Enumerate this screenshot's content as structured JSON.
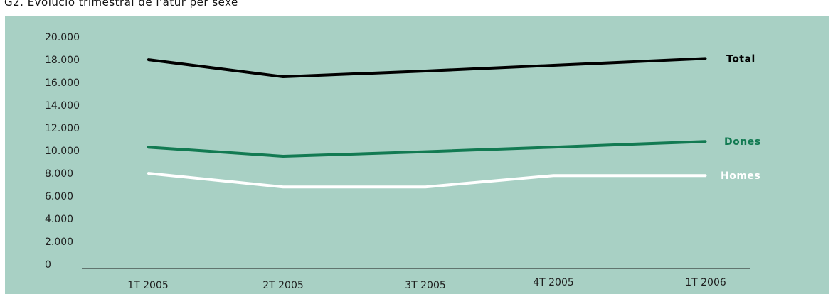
{
  "chart_data": {
    "type": "line",
    "title": "G2. Evolució trimestral de l'atur per sexe",
    "categories": [
      "1T 2005",
      "2T 2005",
      "3T 2005",
      "4T 2005",
      "1T 2006"
    ],
    "ylim": [
      0,
      20000
    ],
    "y_ticks": [
      "0",
      "2.000",
      "4.000",
      "6.000",
      "8.000",
      "10.000",
      "12.000",
      "14.000",
      "16.000",
      "18.000",
      "20.000"
    ],
    "grid": false,
    "legend": "right",
    "series": [
      {
        "name": "Total",
        "values": [
          18000,
          16500,
          17000,
          17500,
          18100
        ],
        "color": "#000000"
      },
      {
        "name": "Dones",
        "values": [
          10300,
          9500,
          9900,
          10300,
          10800
        ],
        "color": "#127a52"
      },
      {
        "name": "Homes",
        "values": [
          8000,
          6800,
          6800,
          7800,
          7800
        ],
        "color": "#ffffff"
      }
    ],
    "background": "#a8d0c4"
  }
}
